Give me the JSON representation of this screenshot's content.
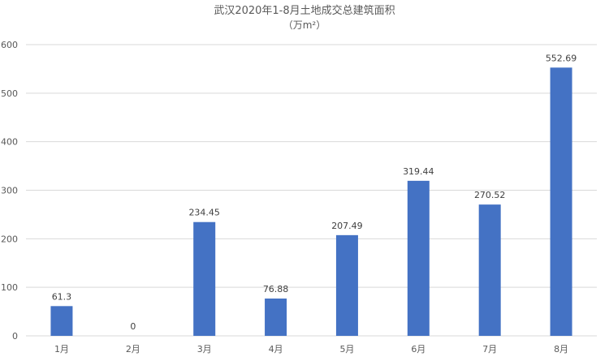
{
  "chart_data": {
    "type": "bar",
    "title": "武汉2020年1-8月土地成交总建筑面积",
    "subtitle": "（万m²）",
    "categories": [
      "1月",
      "2月",
      "3月",
      "4月",
      "5月",
      "6月",
      "7月",
      "8月"
    ],
    "values": [
      61.3,
      0,
      234.45,
      76.88,
      207.49,
      319.44,
      270.52,
      552.69
    ],
    "value_labels": [
      "61.3",
      "0",
      "234.45",
      "76.88",
      "207.49",
      "319.44",
      "270.52",
      "552.69"
    ],
    "ylim": [
      0,
      600
    ],
    "yticks": [
      0,
      100,
      200,
      300,
      400,
      500,
      600
    ],
    "grid": true,
    "legend": "none",
    "bar_color": "#4472C4",
    "grid_color": "#d9d9d9",
    "text_color": "#595959"
  }
}
